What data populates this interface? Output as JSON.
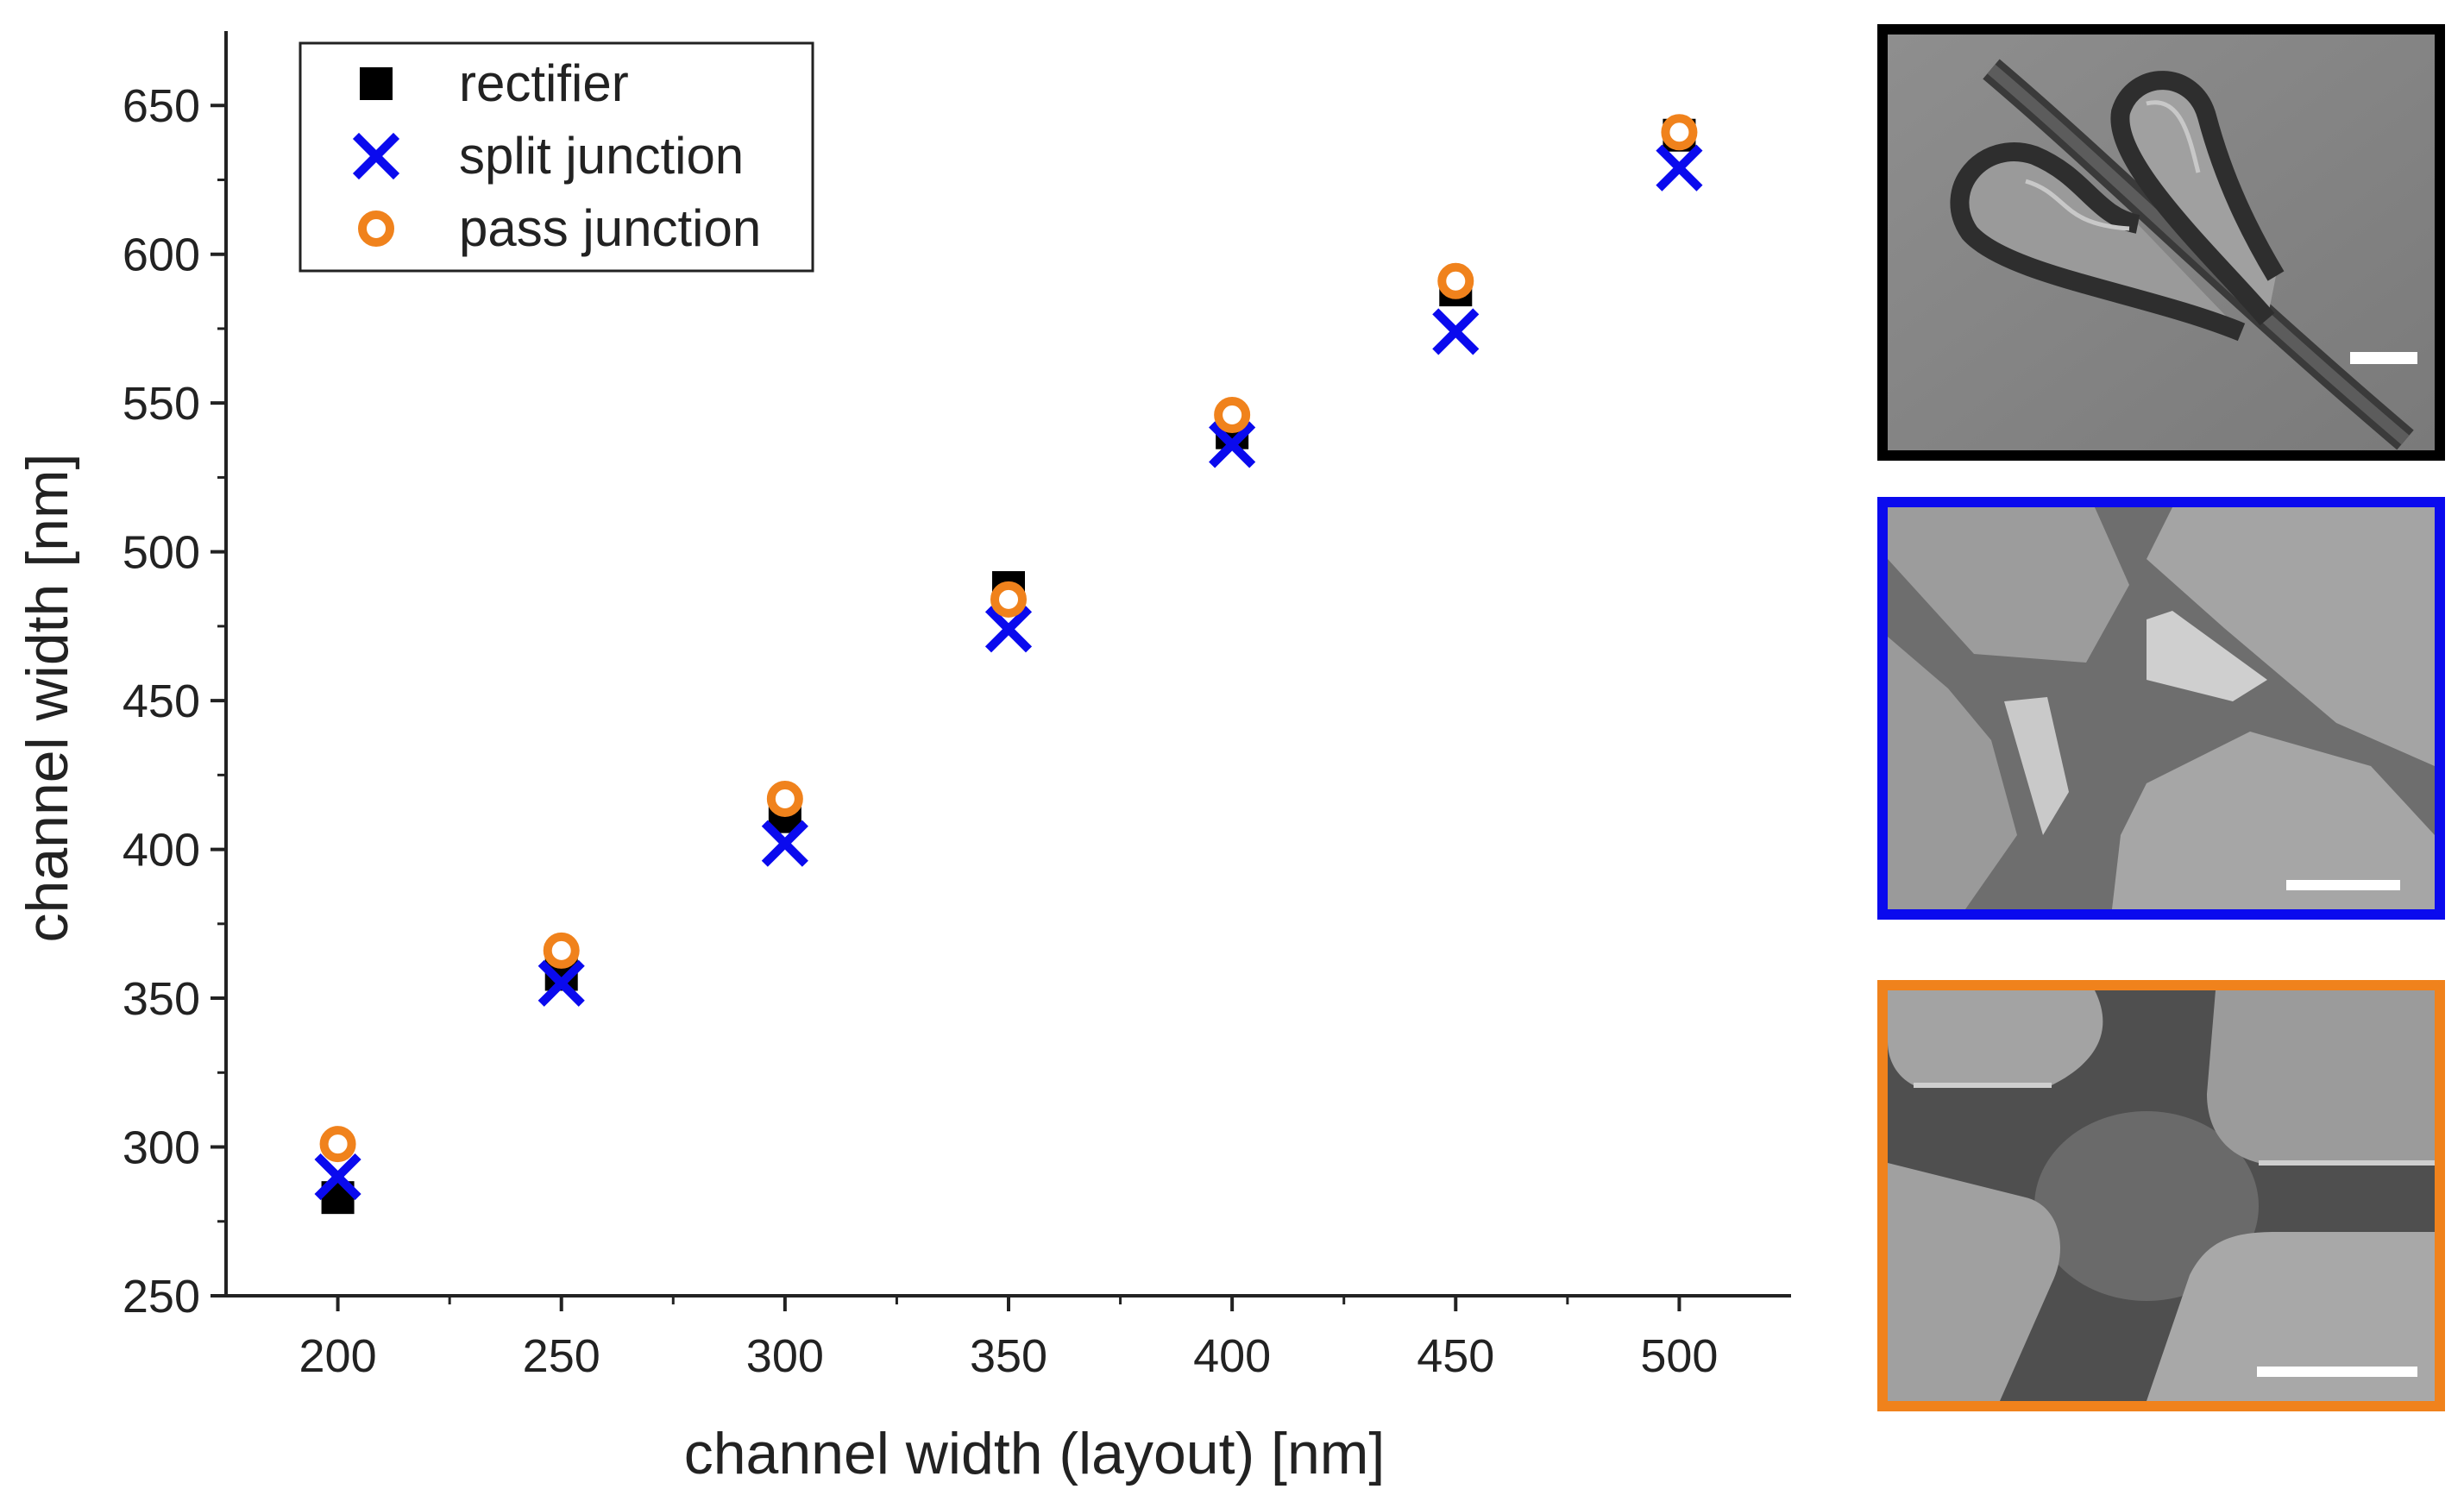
{
  "chart_data": {
    "type": "scatter",
    "title": "",
    "xlabel": "channel width (layout) [nm]",
    "ylabel": "channel width [nm]",
    "xlim": [
      175,
      525
    ],
    "ylim": [
      250,
      675
    ],
    "x_major_ticks": [
      200,
      250,
      300,
      350,
      400,
      450,
      500
    ],
    "y_major_ticks": [
      250,
      300,
      350,
      400,
      450,
      500,
      550,
      600,
      650
    ],
    "legend_position": "top-left",
    "grid": false,
    "series": [
      {
        "name": "rectifier",
        "marker": "square",
        "color": "#000000",
        "x": [
          200,
          250,
          300,
          350,
          400,
          450,
          500
        ],
        "y": [
          283,
          358,
          411,
          488,
          540,
          588,
          640
        ]
      },
      {
        "name": "split junction",
        "marker": "x",
        "color": "#0a0aee",
        "x": [
          200,
          250,
          300,
          350,
          400,
          450,
          500
        ],
        "y": [
          290,
          355,
          402,
          474,
          536,
          574,
          629
        ]
      },
      {
        "name": "pass junction",
        "marker": "circle",
        "color": "#f0821c",
        "x": [
          200,
          250,
          300,
          350,
          400,
          450,
          500
        ],
        "y": [
          301,
          366,
          417,
          484,
          546,
          591,
          641
        ]
      }
    ]
  },
  "insets": [
    {
      "name": "rectifier SEM image",
      "border_color": "#000000"
    },
    {
      "name": "split junction SEM image",
      "border_color": "#0a0aee"
    },
    {
      "name": "pass junction SEM image",
      "border_color": "#f0821c"
    }
  ]
}
